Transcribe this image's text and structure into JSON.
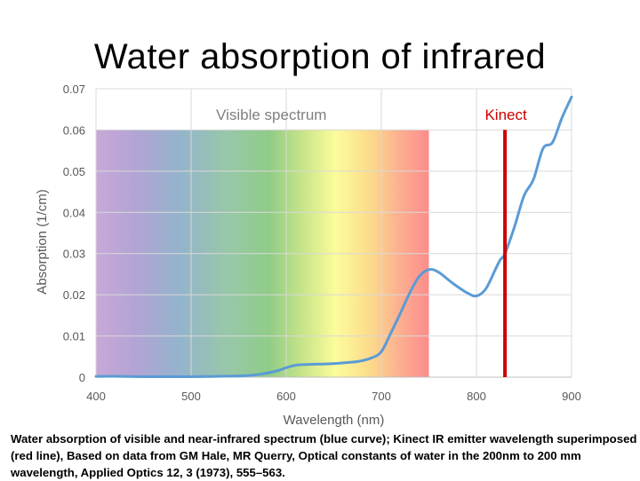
{
  "slide": {
    "title": "Water absorption of infrared",
    "caption": "Water absorption of visible and near-infrared spectrum (blue curve);  Kinect IR emitter wavelength superimposed (red line),  Based on data from GM Hale, MR Querry, Optical constants of water in the 200nm to 200 mm wavelength, Applied Optics 12, 3 (1973), 555–563."
  },
  "colors": {
    "curve": "#5b9bd5",
    "marker": "#cc0000",
    "grid": "#d9d9d9",
    "axis_text": "#595959"
  },
  "chart_data": {
    "type": "line",
    "xlabel": "Wavelength (nm)",
    "ylabel": "Absorption (1/cm)",
    "xlim": [
      400,
      900
    ],
    "ylim": [
      0,
      0.07
    ],
    "xticks": [
      400,
      500,
      600,
      700,
      800,
      900
    ],
    "xtick_labels": [
      "400",
      "500",
      "600",
      "700",
      "800",
      "900"
    ],
    "yticks": [
      0,
      0.01,
      0.02,
      0.03,
      0.04,
      0.05,
      0.06,
      0.07
    ],
    "ytick_labels": [
      "0",
      "0.01",
      "0.02",
      "0.03",
      "0.04",
      "0.05",
      "0.06",
      "0.07"
    ],
    "grid": true,
    "series": [
      {
        "name": "Water absorption",
        "x": [
          400,
          425,
          450,
          475,
          500,
          525,
          550,
          565,
          575,
          590,
          600,
          610,
          625,
          650,
          675,
          690,
          700,
          710,
          720,
          730,
          740,
          750,
          760,
          775,
          790,
          800,
          810,
          820,
          825,
          830,
          840,
          850,
          860,
          870,
          880,
          890,
          900
        ],
        "values": [
          0.0002,
          0.0002,
          0.0001,
          0.0001,
          0.0001,
          0.0002,
          0.0003,
          0.0005,
          0.0008,
          0.0015,
          0.0023,
          0.0029,
          0.0031,
          0.0033,
          0.0038,
          0.0047,
          0.0062,
          0.0107,
          0.0155,
          0.0205,
          0.0245,
          0.0261,
          0.0255,
          0.0228,
          0.0205,
          0.0197,
          0.0215,
          0.0262,
          0.0285,
          0.03,
          0.0365,
          0.044,
          0.048,
          0.0555,
          0.057,
          0.063,
          0.068
        ]
      }
    ],
    "bands": [
      {
        "label": "Visible spectrum",
        "x_start": 400,
        "x_end": 750,
        "y_top": 0.06
      }
    ],
    "markers": [
      {
        "label": "Kinect",
        "x": 830
      }
    ]
  }
}
